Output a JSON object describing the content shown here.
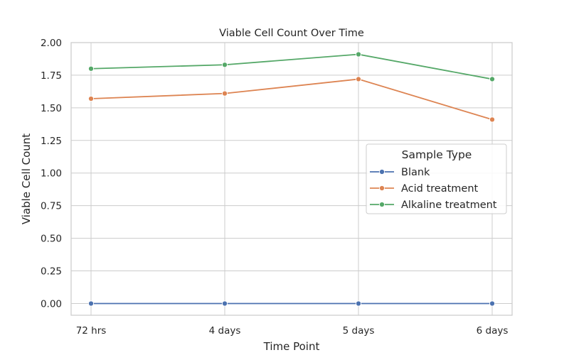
{
  "chart_data": {
    "type": "line",
    "title": "Viable Cell Count Over Time",
    "xlabel": "Time Point",
    "ylabel": "Viable Cell Count",
    "categories": [
      "72 hrs",
      "4 days",
      "5 days",
      "6 days"
    ],
    "ylim": [
      -0.09,
      2.0
    ],
    "yticks": [
      0.0,
      0.25,
      0.5,
      0.75,
      1.0,
      1.25,
      1.5,
      1.75,
      2.0
    ],
    "ytick_labels": [
      "0.00",
      "0.25",
      "0.50",
      "0.75",
      "1.00",
      "1.25",
      "1.50",
      "1.75",
      "2.00"
    ],
    "grid": true,
    "legend": {
      "title": "Sample Type",
      "placement": "center-right"
    },
    "series": [
      {
        "name": "Blank",
        "color": "#4c72b0",
        "values": [
          0.0,
          0.0,
          0.0,
          0.0
        ]
      },
      {
        "name": "Acid treatment",
        "color": "#dd8452",
        "values": [
          1.57,
          1.61,
          1.72,
          1.41
        ]
      },
      {
        "name": "Alkaline treatment",
        "color": "#55a868",
        "values": [
          1.8,
          1.83,
          1.91,
          1.72
        ]
      }
    ]
  }
}
